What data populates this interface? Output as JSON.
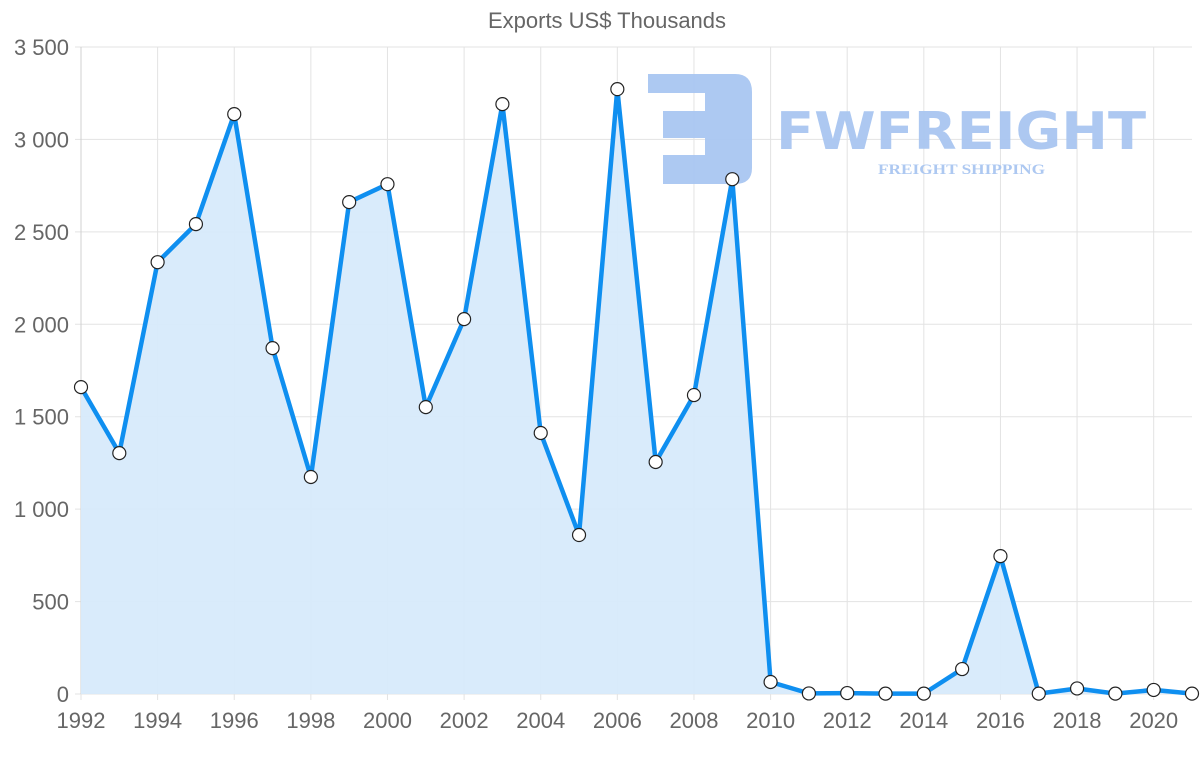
{
  "title": "Exports US$ Thousands",
  "watermark": {
    "brand": "FWFREIGHT",
    "tagline": "FREIGHT SHIPPING"
  },
  "colors": {
    "line": "#0f8ff0",
    "fill": "#d7eafb",
    "grid": "#e3e3e3",
    "watermark": "#a9c6f1"
  },
  "chart_data": {
    "type": "area",
    "title": "Exports US$ Thousands",
    "xlabel": "",
    "ylabel": "",
    "ylim": [
      0,
      3500
    ],
    "yticks": [
      0,
      500,
      1000,
      1500,
      2000,
      2500,
      3000,
      3500
    ],
    "ytick_labels": [
      "0",
      "500",
      "1 000",
      "1 500",
      "2 000",
      "2 500",
      "3 000",
      "3 500"
    ],
    "xtick_labels": [
      "1992",
      "1994",
      "1996",
      "1998",
      "2000",
      "2002",
      "2004",
      "2006",
      "2008",
      "2010",
      "2012",
      "2014",
      "2016",
      "2018",
      "2020"
    ],
    "grid": true,
    "legend": "none",
    "x": [
      1992,
      1993,
      1994,
      1995,
      1996,
      1997,
      1998,
      1999,
      2000,
      2001,
      2002,
      2003,
      2004,
      2005,
      2006,
      2007,
      2008,
      2009,
      2010,
      2011,
      2012,
      2013,
      2014,
      2015,
      2016,
      2017,
      2018,
      2019,
      2020,
      2021
    ],
    "series": [
      {
        "name": "Exports US$ Thousands",
        "values": [
          1660,
          1303,
          2336,
          2542,
          3137,
          1871,
          1174,
          2661,
          2758,
          1552,
          2028,
          3191,
          1412,
          860,
          3272,
          1255,
          1617,
          2785,
          65,
          3,
          5,
          2,
          2,
          135,
          746,
          2,
          30,
          2,
          22,
          2
        ]
      }
    ]
  }
}
